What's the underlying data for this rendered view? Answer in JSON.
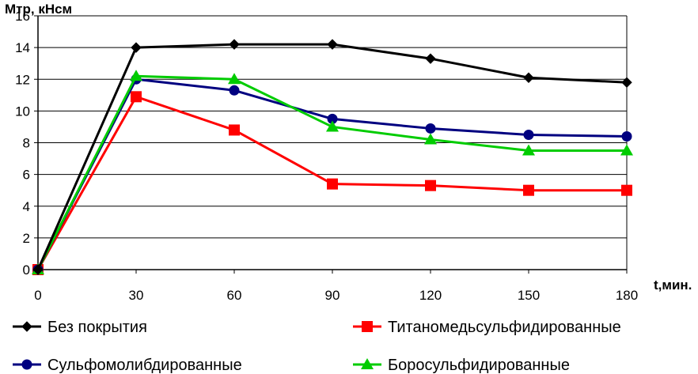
{
  "chart_data": {
    "type": "line",
    "ylabel": "Мтр, кНсм",
    "xlabel": "t,мин.",
    "x": [
      0,
      30,
      60,
      90,
      120,
      150,
      180
    ],
    "xlim": [
      0,
      180
    ],
    "ylim": [
      0,
      16
    ],
    "x_ticks": [
      "0",
      "30",
      "60",
      "90",
      "120",
      "150",
      "180"
    ],
    "y_ticks": [
      "0",
      "2",
      "4",
      "6",
      "8",
      "10",
      "12",
      "14",
      "16"
    ],
    "grid": "horizontal",
    "legend_position": "bottom",
    "series": [
      {
        "name": "Без покрытия",
        "values": [
          0,
          14.0,
          14.2,
          14.2,
          13.3,
          12.1,
          11.8
        ],
        "color": "#000000",
        "marker": "diamond"
      },
      {
        "name": "Титаномедьсульфидированные",
        "values": [
          0,
          10.9,
          8.8,
          5.4,
          5.3,
          5.0,
          5.0
        ],
        "color": "#ff0000",
        "marker": "square"
      },
      {
        "name": "Сульфомолибдированные",
        "values": [
          0,
          12.0,
          11.3,
          9.5,
          8.9,
          8.5,
          8.4
        ],
        "color": "#000080",
        "marker": "circle"
      },
      {
        "name": "Боросульфидированные",
        "values": [
          0,
          12.2,
          12.0,
          9.0,
          8.2,
          7.5,
          7.5
        ],
        "color": "#00cc00",
        "marker": "triangle"
      }
    ]
  }
}
